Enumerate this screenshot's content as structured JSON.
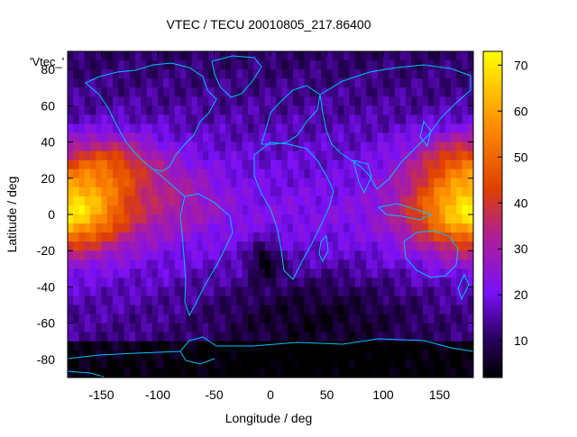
{
  "chart_data": {
    "type": "heatmap",
    "title": "VTEC / TECU 20010805_217.86400",
    "xlabel": "Longitude / deg",
    "ylabel": "Latitude / deg",
    "xlim": [
      -180,
      180
    ],
    "ylim": [
      -90,
      90
    ],
    "x_ticks": [
      -150,
      -100,
      -50,
      0,
      50,
      100,
      150
    ],
    "y_ticks": [
      -80,
      -60,
      -40,
      -20,
      0,
      20,
      40,
      60,
      80
    ],
    "colorbar": {
      "min": 2,
      "max": 73,
      "ticks": [
        10,
        20,
        30,
        40,
        50,
        60,
        70
      ],
      "palette": [
        "#000000",
        "#2a0060",
        "#7a10f8",
        "#b02090",
        "#e04000",
        "#ff9000",
        "#ffff00"
      ]
    },
    "key_label": "'Vtec_'",
    "coastline_color": "#00c0ff",
    "grid": false,
    "legend_position": "top-left",
    "features": [
      {
        "lon": -180,
        "lat": 0,
        "value": 72
      },
      {
        "lon": 180,
        "lat": 0,
        "value": 72
      },
      {
        "lon": -150,
        "lat": 10,
        "value": 62
      },
      {
        "lon": 160,
        "lat": 10,
        "value": 62
      },
      {
        "lon": -5,
        "lat": -25,
        "value": 3
      }
    ]
  }
}
